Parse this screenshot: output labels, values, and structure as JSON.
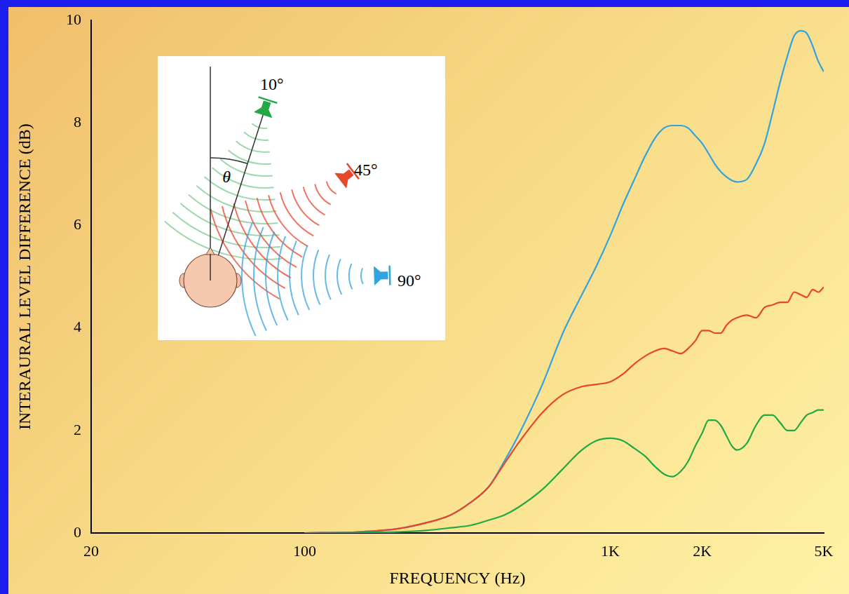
{
  "chart_data": {
    "type": "line",
    "x_label": "FREQUENCY (Hz)",
    "y_label": "INTERAURAL LEVEL DIFFERENCE (dB)",
    "annotations": [
      "θ"
    ],
    "log": "x",
    "grid": false,
    "xlim": [
      20,
      5000
    ],
    "xticks": [
      20,
      100,
      {
        "value": 1000,
        "label": "1K"
      },
      {
        "value": 2000,
        "label": "2K"
      },
      {
        "value": 5000,
        "label": "5K"
      }
    ],
    "ylim": [
      0,
      10
    ],
    "yticks": [
      0,
      2,
      4,
      6,
      8,
      10
    ],
    "x": [
      100,
      150,
      200,
      250,
      300,
      350,
      400,
      450,
      500,
      600,
      700,
      800,
      900,
      1000,
      1100,
      1200,
      1300,
      1400,
      1500,
      1600,
      1700,
      1800,
      1900,
      2000,
      2100,
      2200,
      2300,
      2400,
      2500,
      2600,
      2800,
      3000,
      3200,
      3400,
      3600,
      3800,
      4000,
      4200,
      4400,
      4600,
      4800,
      5000
    ],
    "series": [
      {
        "name": "10°",
        "color": "#22a845",
        "values": [
          0,
          0.01,
          0.02,
          0.05,
          0.1,
          0.15,
          0.25,
          0.35,
          0.5,
          0.85,
          1.25,
          1.6,
          1.8,
          1.85,
          1.8,
          1.65,
          1.5,
          1.3,
          1.15,
          1.1,
          1.2,
          1.4,
          1.7,
          1.95,
          2.2,
          2.2,
          2.1,
          1.9,
          1.7,
          1.62,
          1.75,
          2.1,
          2.3,
          2.3,
          2.15,
          2.0,
          2.0,
          2.15,
          2.3,
          2.35,
          2.4,
          2.4
        ]
      },
      {
        "name": "45°",
        "color": "#e8462a",
        "values": [
          0,
          0.02,
          0.08,
          0.2,
          0.35,
          0.6,
          0.9,
          1.35,
          1.75,
          2.35,
          2.7,
          2.85,
          2.9,
          2.95,
          3.1,
          3.3,
          3.45,
          3.55,
          3.6,
          3.55,
          3.5,
          3.6,
          3.75,
          3.95,
          3.95,
          3.9,
          3.9,
          4.05,
          4.15,
          4.2,
          4.25,
          4.2,
          4.4,
          4.45,
          4.5,
          4.5,
          4.7,
          4.65,
          4.6,
          4.75,
          4.7,
          4.8
        ]
      },
      {
        "name": "90°",
        "color": "#33a3e0",
        "values": [
          0,
          0.02,
          0.08,
          0.2,
          0.35,
          0.6,
          0.9,
          1.4,
          1.9,
          2.9,
          3.9,
          4.6,
          5.2,
          5.8,
          6.4,
          6.9,
          7.35,
          7.7,
          7.9,
          7.95,
          7.95,
          7.9,
          7.75,
          7.6,
          7.4,
          7.2,
          7.05,
          6.95,
          6.88,
          6.85,
          6.9,
          7.2,
          7.6,
          8.2,
          8.8,
          9.3,
          9.7,
          9.8,
          9.75,
          9.5,
          9.2,
          9.0
        ]
      }
    ]
  }
}
